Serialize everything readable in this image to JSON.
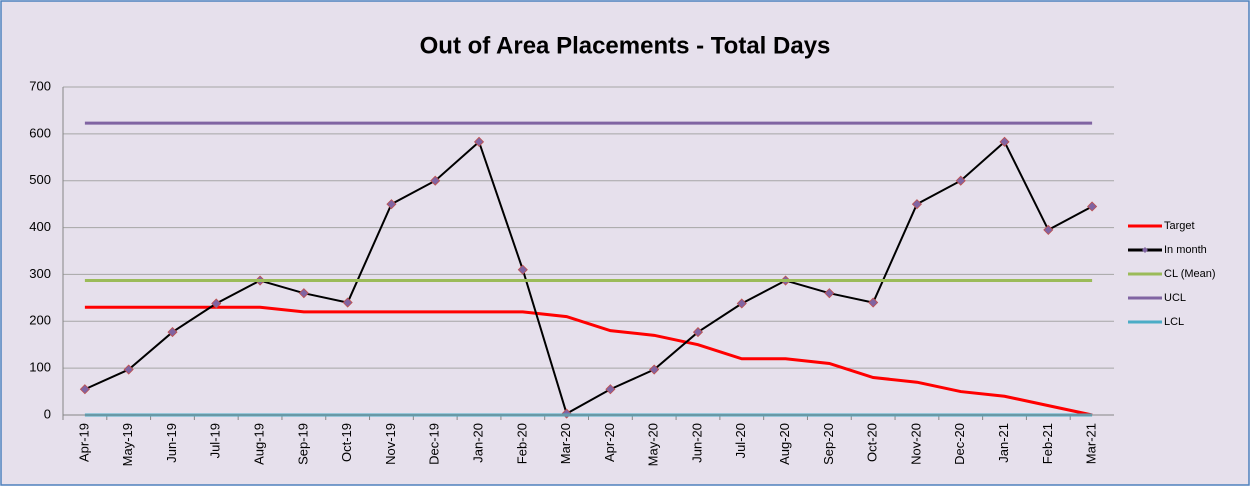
{
  "chart_data": {
    "type": "line",
    "title": "Out of Area Placements - Total Days",
    "categories": [
      "Apr-19",
      "May-19",
      "Jun-19",
      "Jul-19",
      "Aug-19",
      "Sep-19",
      "Oct-19",
      "Nov-19",
      "Dec-19",
      "Jan-20",
      "Feb-20",
      "Mar-20",
      "Apr-20",
      "May-20",
      "Jun-20",
      "Jul-20",
      "Aug-20",
      "Sep-20",
      "Oct-20",
      "Nov-20",
      "Dec-20",
      "Jan-21",
      "Feb-21",
      "Mar-21"
    ],
    "series": [
      {
        "name": "Target",
        "color": "#ff0000",
        "values": [
          230,
          230,
          230,
          230,
          230,
          220,
          220,
          220,
          220,
          220,
          220,
          210,
          180,
          170,
          150,
          120,
          120,
          110,
          80,
          70,
          50,
          40,
          20,
          0
        ]
      },
      {
        "name": "In month",
        "color": "#000000",
        "marker_color": "#8064a2",
        "values": [
          55,
          97,
          177,
          238,
          287,
          260,
          240,
          450,
          500,
          583,
          310,
          3,
          55,
          97,
          177,
          238,
          287,
          260,
          240,
          450,
          500,
          583,
          395,
          445
        ]
      },
      {
        "name": "CL (Mean)",
        "color": "#9bbb59",
        "values": [
          287,
          287,
          287,
          287,
          287,
          287,
          287,
          287,
          287,
          287,
          287,
          287,
          287,
          287,
          287,
          287,
          287,
          287,
          287,
          287,
          287,
          287,
          287,
          287
        ]
      },
      {
        "name": "UCL",
        "color": "#8064a2",
        "values": [
          623,
          623,
          623,
          623,
          623,
          623,
          623,
          623,
          623,
          623,
          623,
          623,
          623,
          623,
          623,
          623,
          623,
          623,
          623,
          623,
          623,
          623,
          623,
          623
        ]
      },
      {
        "name": "LCL",
        "color": "#4bacc6",
        "values": [
          0,
          0,
          0,
          0,
          0,
          0,
          0,
          0,
          0,
          0,
          0,
          0,
          0,
          0,
          0,
          0,
          0,
          0,
          0,
          0,
          0,
          0,
          0,
          0
        ]
      }
    ],
    "ylim": [
      0,
      700
    ],
    "yticks": [
      0,
      100,
      200,
      300,
      400,
      500,
      600,
      700
    ],
    "grid": true,
    "legend": "right"
  }
}
